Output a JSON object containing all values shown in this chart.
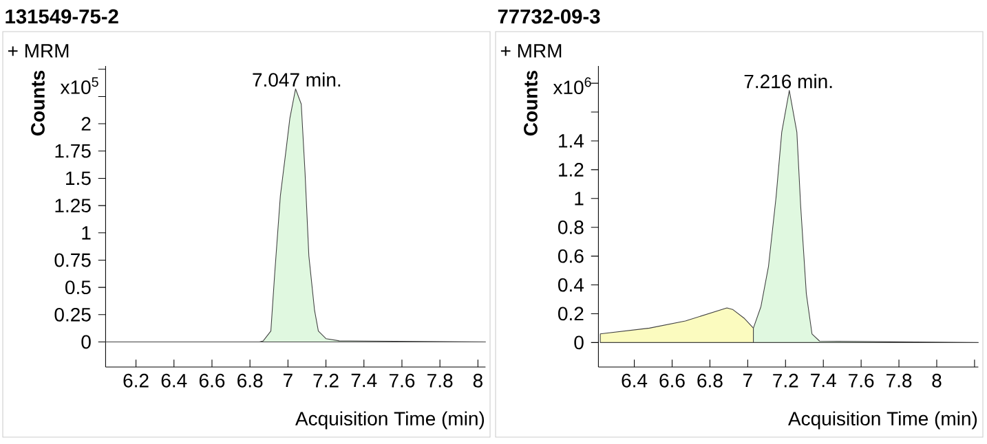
{
  "chart_data": [
    {
      "type": "area",
      "title": "131549-75-2",
      "subtitle": "+ MRM",
      "xlabel": "Acquisition Time (min)",
      "ylabel": "Counts",
      "annotations": [
        "x10$^{5}$",
        {
          "text": "7.047 min.",
          "x": 7.047,
          "y": 2.32
        }
      ],
      "xlim": [
        6.04,
        8.04
      ],
      "ylim": [
        -0.23,
        2.53
      ],
      "xticks": [
        6.2,
        6.4,
        6.6,
        6.8,
        7,
        7.2,
        7.4,
        7.6,
        7.8,
        8
      ],
      "yticks": [
        0,
        0.25,
        0.5,
        0.75,
        1,
        1.25,
        1.5,
        1.75,
        2,
        {
          "value": 2.25,
          "label": null
        },
        {
          "value": 2.5,
          "label": null
        }
      ],
      "series": [
        {
          "color": "#e0f8e0",
          "x": [
            6.04,
            6.85,
            6.87,
            6.91,
            6.93,
            6.96,
            6.99,
            7.01,
            7.04,
            7.07,
            7.09,
            7.11,
            7.14,
            7.16,
            7.2,
            7.27,
            8.04
          ],
          "values": [
            0,
            0,
            0.01,
            0.1,
            0.62,
            1.34,
            1.76,
            2.05,
            2.32,
            2.18,
            1.55,
            0.79,
            0.29,
            0.1,
            0.03,
            0.01,
            0
          ]
        }
      ]
    },
    {
      "type": "area",
      "title": "77732-09-3",
      "subtitle": "+ MRM",
      "xlabel": "Acquisition Time (min)",
      "ylabel": "Counts",
      "annotations": [
        "x10$^{6}$",
        {
          "text": "7.216 min.",
          "x": 7.216,
          "y": 1.75
        }
      ],
      "xlim": [
        6.21,
        8.22
      ],
      "ylim": [
        -0.17,
        1.92
      ],
      "xticks": [
        6.4,
        6.6,
        6.8,
        7,
        7.2,
        7.4,
        7.6,
        7.8,
        8,
        {
          "value": 8.2,
          "label": null
        }
      ],
      "yticks": [
        0,
        0.2,
        0.4,
        0.6,
        0.8,
        1,
        1.2,
        1.4,
        {
          "value": 1.6,
          "label": null
        },
        {
          "value": 1.8,
          "label": null
        }
      ],
      "series": [
        {
          "color": "#fbfbbf",
          "x": [
            6.22,
            6.48,
            6.67,
            6.89,
            6.92,
            6.98,
            7.03
          ],
          "values": [
            0.06,
            0.1,
            0.15,
            0.24,
            0.23,
            0.17,
            0.1
          ]
        },
        {
          "color": "#e0f8e0",
          "x": [
            7.03,
            7.07,
            7.11,
            7.15,
            7.18,
            7.22,
            7.26,
            7.28,
            7.31,
            7.34,
            7.38,
            8.22
          ],
          "values": [
            0.1,
            0.25,
            0.53,
            1.01,
            1.46,
            1.75,
            1.46,
            0.95,
            0.34,
            0.06,
            0.01,
            0
          ]
        }
      ]
    }
  ]
}
